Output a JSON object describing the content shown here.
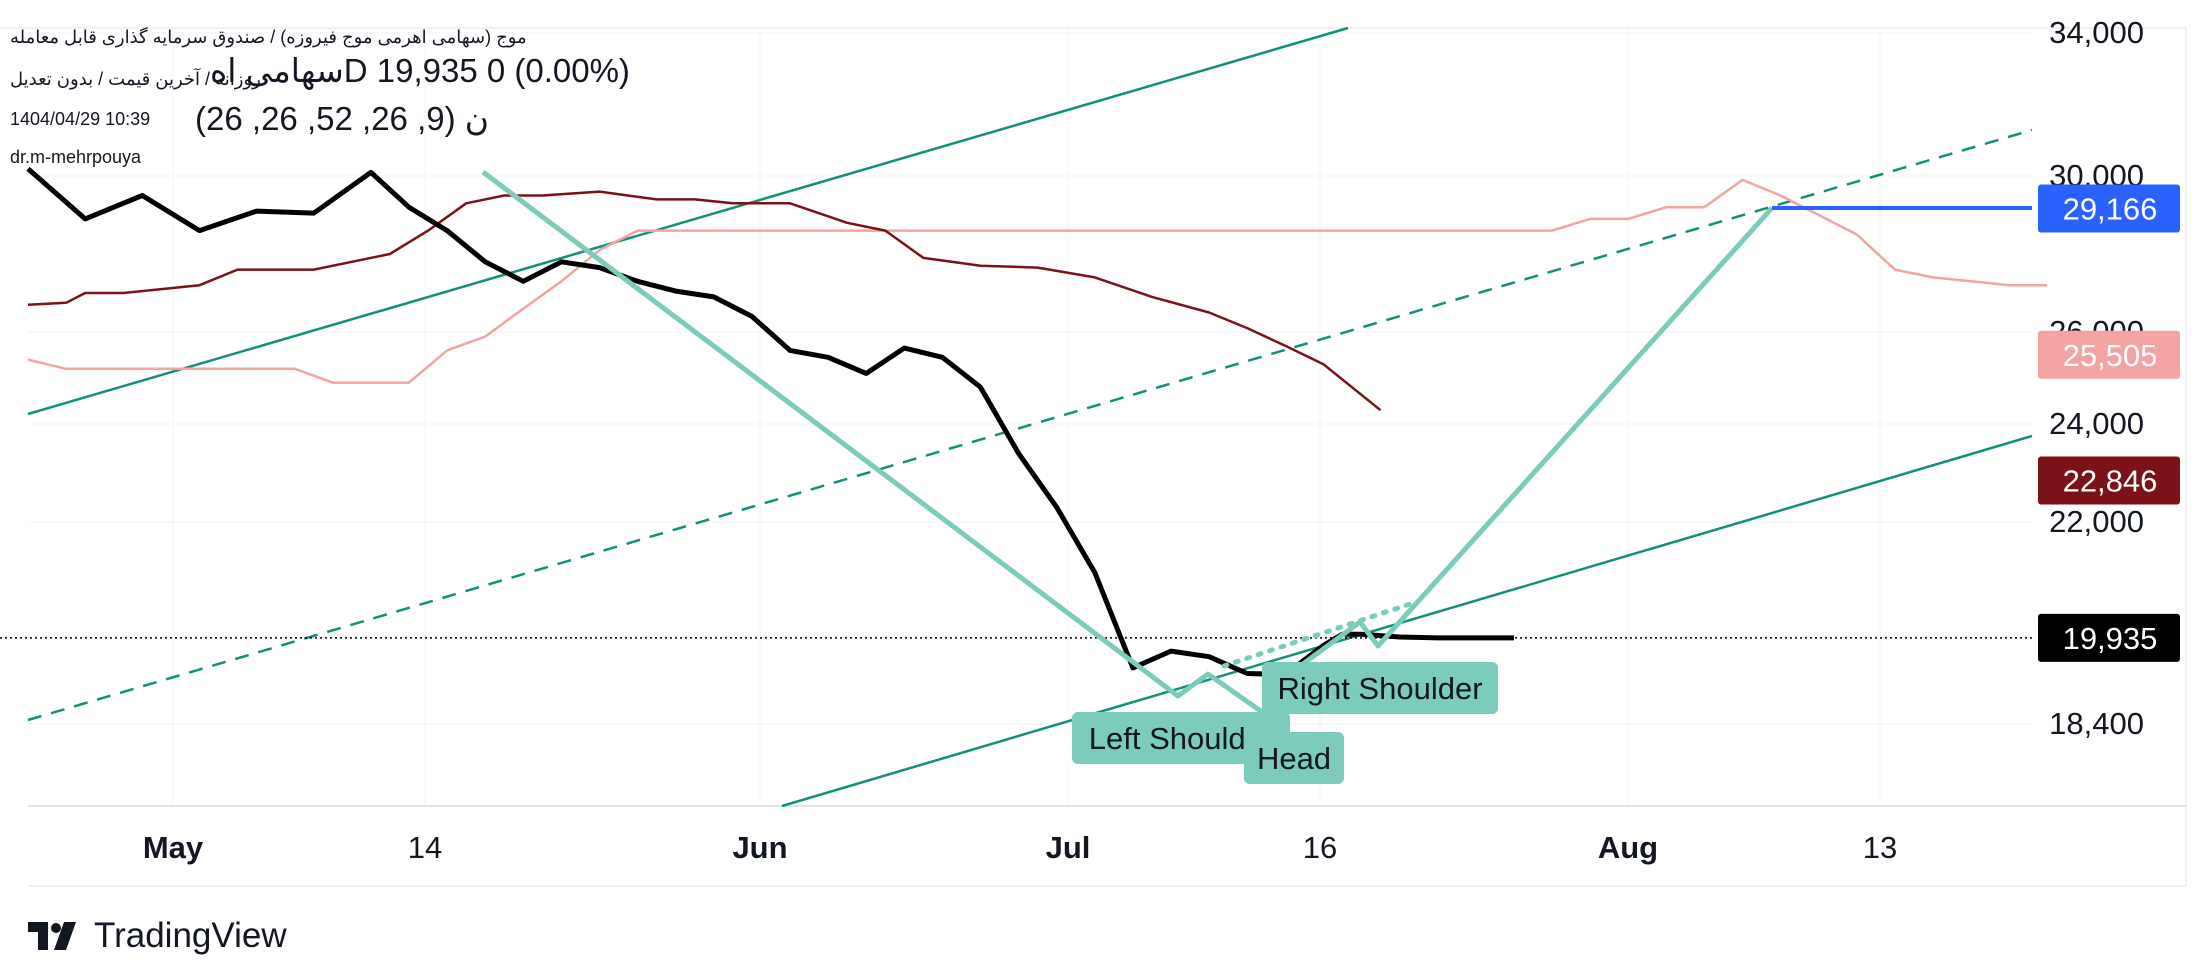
{
  "header": {
    "exchange_line": "موج (سهامی اهرمی موج فیروزه) / صندوق سرمایه گذاری قابل معامله",
    "interval_line": "روزانه / آخرین قیمت / بدون تعدیل",
    "symbol_fragment": "سهامی اهD",
    "quote": "19,935  0 (0.00%)",
    "datetime": "1404/04/29 10:39",
    "indicator_params": "(9, 26, 52, 26, 26)",
    "author": "dr.m-mehrpouya"
  },
  "brand": {
    "name": "TradingView",
    "logo_icon": "tradingview-logo-icon"
  },
  "colors": {
    "price": "#000000",
    "kijun": "#7b1219",
    "senkou_b": "#f4a3a3",
    "channel": "#13907a",
    "pattern": "#7ccbbb",
    "target": "#2962ff",
    "current_price": "#000000"
  },
  "chart_data": {
    "type": "line",
    "x_ticks": [
      {
        "label": "May",
        "major": true
      },
      {
        "label": "14",
        "major": false
      },
      {
        "label": "Jun",
        "major": true
      },
      {
        "label": "Jul",
        "major": true
      },
      {
        "label": "16",
        "major": false
      },
      {
        "label": "Aug",
        "major": true
      },
      {
        "label": "13",
        "major": false
      }
    ],
    "y_ticks": [
      34000,
      30000,
      26000,
      24000,
      22000,
      18400
    ],
    "y_tick_labels": [
      "34,000",
      "30,000",
      "26,000",
      "24,000",
      "22,000",
      "18,400"
    ],
    "price_labels": [
      {
        "label": "29,166",
        "value": 29166,
        "color": "#2962ff"
      },
      {
        "label": "25,505",
        "value": 25505,
        "color": "#f4a3a3"
      },
      {
        "label": "22,846",
        "value": 22846,
        "color": "#7b1219"
      },
      {
        "label": "19,935",
        "value": 19935,
        "color": "#000000"
      }
    ],
    "pattern_labels": [
      "Left Shoulder",
      "Head",
      "Right Shoulder"
    ],
    "series": [
      {
        "key": "price",
        "x": [
          0,
          3,
          6,
          9,
          12,
          15,
          18,
          20,
          22,
          24,
          26,
          28,
          30,
          32,
          34,
          36,
          38,
          40,
          42,
          44,
          46,
          48,
          50,
          52,
          54,
          56,
          58,
          60,
          62,
          64,
          66,
          68,
          69,
          70,
          72,
          74,
          76,
          78
        ],
        "values": [
          30200,
          28900,
          29500,
          28600,
          29100,
          29050,
          30100,
          29200,
          28600,
          27800,
          27300,
          27800,
          27650,
          27300,
          27050,
          26900,
          26400,
          25600,
          25450,
          25100,
          25650,
          25450,
          24800,
          23400,
          22300,
          21100,
          19400,
          19700,
          19600,
          19300,
          19280,
          19800,
          20000,
          20000,
          19950,
          19935,
          19935,
          19935
        ]
      },
      {
        "key": "kijun",
        "x": [
          0,
          2,
          3,
          5,
          9,
          11,
          15,
          17,
          19,
          21,
          23,
          25,
          27,
          30,
          33,
          35,
          37,
          40,
          43,
          45,
          47,
          50,
          53,
          56,
          59,
          62,
          64,
          66,
          68,
          71
        ],
        "values": [
          26700,
          26750,
          27000,
          27000,
          27200,
          27600,
          27600,
          27800,
          28000,
          28600,
          29300,
          29500,
          29500,
          29600,
          29400,
          29400,
          29300,
          29300,
          28800,
          28600,
          27900,
          27700,
          27650,
          27400,
          26900,
          26500,
          26100,
          25700,
          25300,
          24300
        ]
      },
      {
        "key": "senkou_b",
        "x": [
          0,
          2,
          4,
          10,
          14,
          16,
          18,
          20,
          22,
          24,
          26,
          28,
          30,
          32,
          34,
          40,
          60,
          78,
          80,
          82,
          84,
          86,
          88,
          90,
          92,
          94,
          96,
          98,
          100,
          102,
          104,
          106
        ],
        "values": [
          25400,
          25200,
          25200,
          25200,
          25200,
          24900,
          24900,
          24900,
          25600,
          25900,
          26600,
          27300,
          28100,
          28600,
          28600,
          28600,
          28600,
          28600,
          28600,
          28900,
          28900,
          29200,
          29200,
          29900,
          29500,
          29000,
          28500,
          27600,
          27400,
          27300,
          27200,
          27200
        ]
      }
    ]
  }
}
